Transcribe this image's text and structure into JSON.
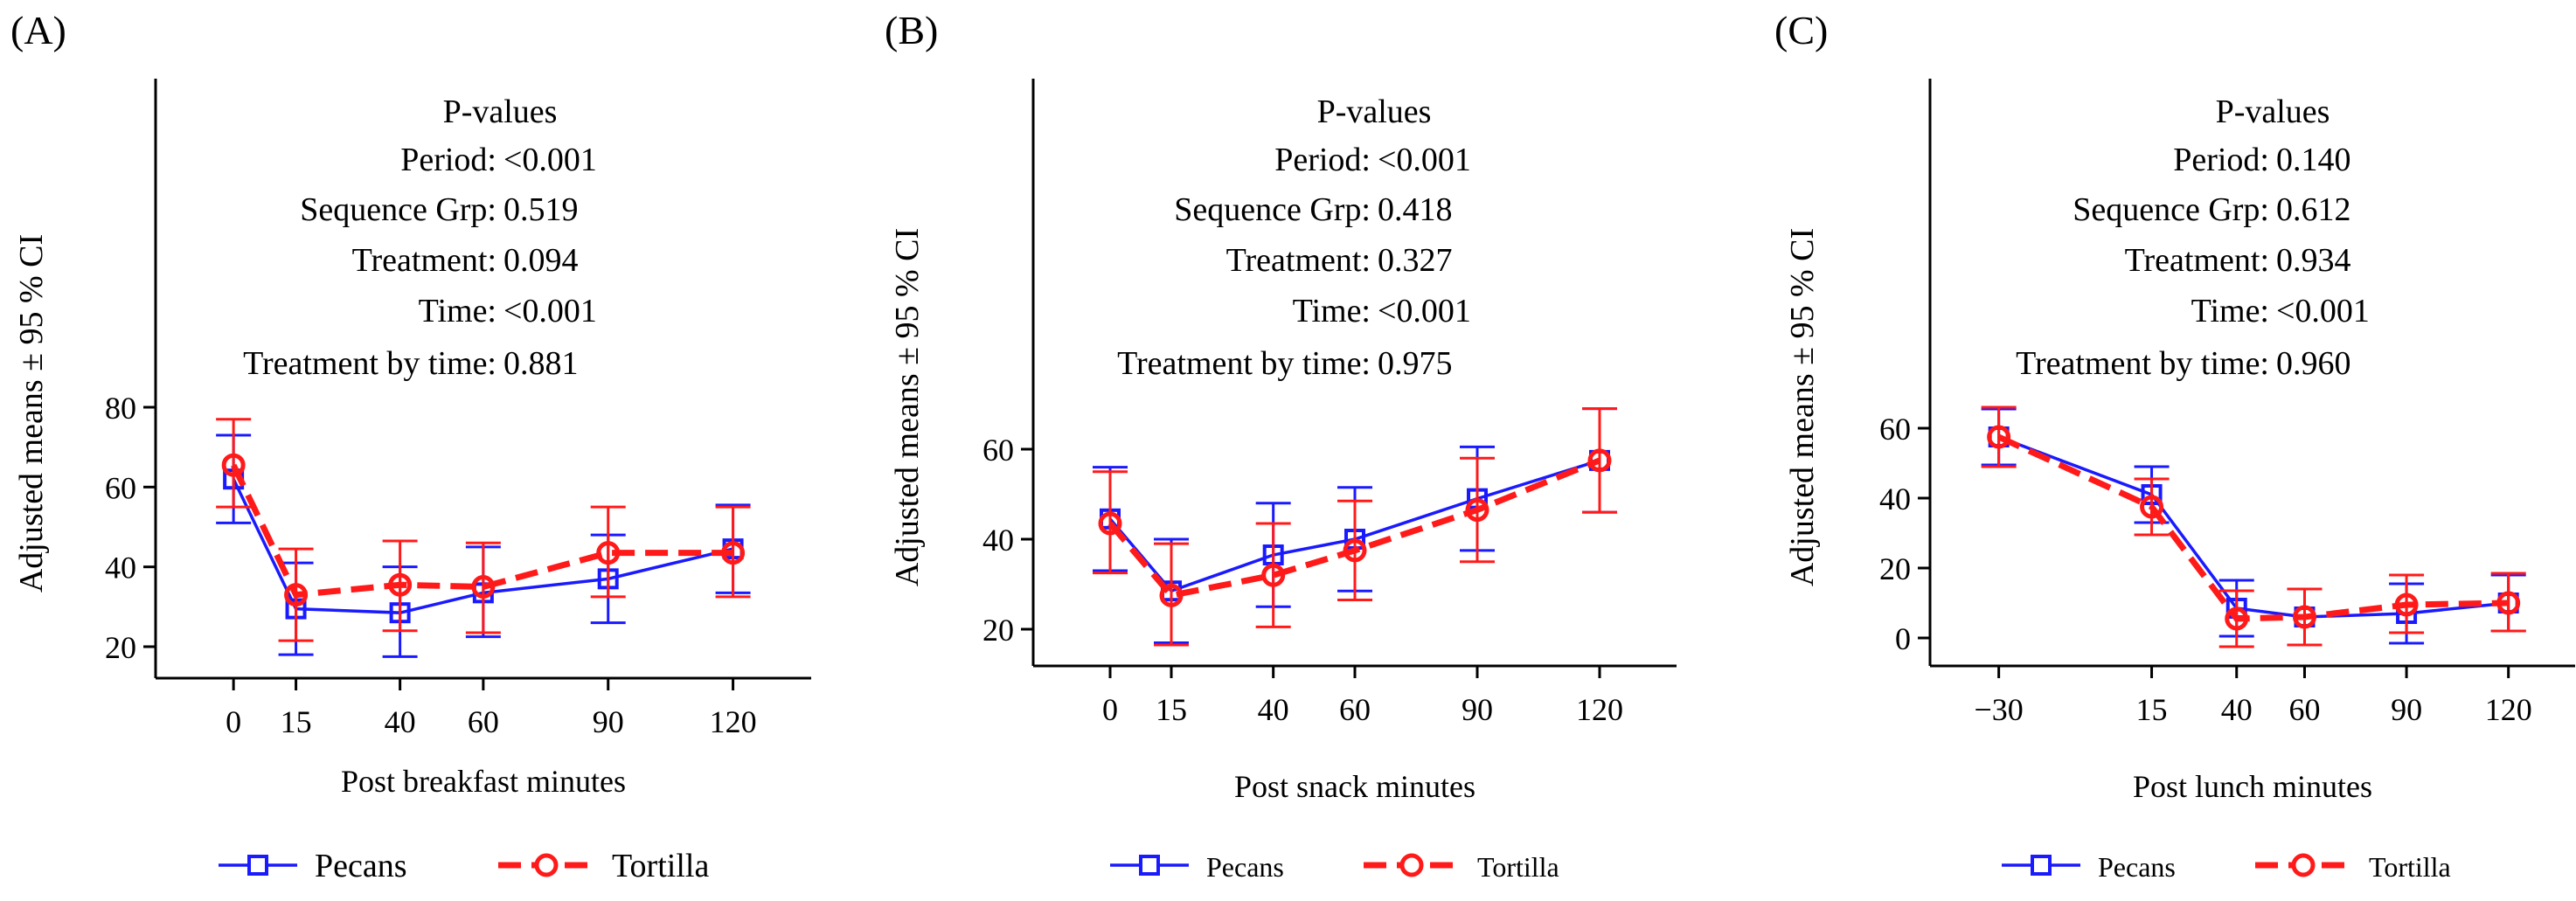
{
  "colors": {
    "pecans": "#1a1aff",
    "tortilla": "#ff1a1a",
    "axis": "#000000"
  },
  "chart_data": [
    {
      "type": "line",
      "panel_label": "(A)",
      "xlabel": "Post breakfast minutes",
      "ylabel": "Adjusted means ± 95 % CI",
      "x": [
        0,
        15,
        40,
        60,
        90,
        120
      ],
      "x_ticks": [
        "0",
        "15",
        "40",
        "60",
        "90",
        "120"
      ],
      "y_ticks": [
        20,
        40,
        60,
        80
      ],
      "ylim": [
        15,
        150
      ],
      "series": [
        {
          "name": "Pecans",
          "marker": "square",
          "line": "solid",
          "values": [
            62,
            29.5,
            28.5,
            33.5,
            37,
            44.5
          ],
          "lower": [
            51,
            18,
            17.5,
            22.5,
            26,
            33.5
          ],
          "upper": [
            73,
            41,
            40,
            45,
            48,
            55.5
          ]
        },
        {
          "name": "Tortilla",
          "marker": "circle",
          "line": "dashed",
          "values": [
            65.5,
            33,
            35.5,
            35,
            43.5,
            43.5
          ],
          "lower": [
            55,
            21.5,
            24,
            23.5,
            32.5,
            32.5
          ],
          "upper": [
            77,
            44.5,
            46.5,
            46,
            55,
            55
          ]
        }
      ],
      "pvalues": [
        {
          "label": "Period:",
          "value": "<0.001"
        },
        {
          "label": "Sequence Grp:",
          "value": "0.519"
        },
        {
          "label": "Treatment:",
          "value": "0.094"
        },
        {
          "label": "Time:",
          "value": "<0.001"
        },
        {
          "label": "Treatment by time:",
          "value": "0.881"
        }
      ],
      "pvalues_title": "P-values",
      "legend_position": "bottom"
    },
    {
      "type": "line",
      "panel_label": "(B)",
      "xlabel": "Post snack minutes",
      "ylabel": "Adjusted means ± 95 % CI",
      "x": [
        0,
        15,
        40,
        60,
        90,
        120
      ],
      "x_ticks": [
        "0",
        "15",
        "40",
        "60",
        "90",
        "120"
      ],
      "y_ticks": [
        20,
        40,
        60
      ],
      "ylim": [
        11,
        132
      ],
      "series": [
        {
          "name": "Pecans",
          "marker": "square",
          "line": "solid",
          "values": [
            44.5,
            28.5,
            36.5,
            40,
            49,
            57.5
          ],
          "lower": [
            33,
            17,
            25,
            28.5,
            37.5,
            46
          ],
          "upper": [
            56,
            40,
            48,
            51.5,
            60.5,
            69
          ]
        },
        {
          "name": "Tortilla",
          "marker": "circle",
          "line": "dashed",
          "values": [
            43.5,
            27.5,
            32,
            37.5,
            46.5,
            57.5
          ],
          "lower": [
            32.5,
            16.5,
            20.5,
            26.5,
            35,
            46
          ],
          "upper": [
            55,
            39,
            43.5,
            48.5,
            58,
            69
          ]
        }
      ],
      "pvalues": [
        {
          "label": "Period:",
          "value": "<0.001"
        },
        {
          "label": "Sequence Grp:",
          "value": "0.418"
        },
        {
          "label": "Treatment:",
          "value": "0.327"
        },
        {
          "label": "Time:",
          "value": "<0.001"
        },
        {
          "label": "Treatment by time:",
          "value": "0.975"
        }
      ],
      "pvalues_title": "P-values",
      "legend_position": "bottom"
    },
    {
      "type": "line",
      "panel_label": "(C)",
      "xlabel": "Post lunch minutes",
      "ylabel": "Adjusted means ± 95 % CI",
      "x": [
        -30,
        15,
        40,
        60,
        90,
        120
      ],
      "x_ticks": [
        "−30",
        "15",
        "40",
        "60",
        "90",
        "120"
      ],
      "y_ticks": [
        0,
        20,
        40,
        60
      ],
      "ylim": [
        -10,
        155
      ],
      "series": [
        {
          "name": "Pecans",
          "marker": "square",
          "line": "solid",
          "values": [
            57.5,
            41,
            8.5,
            6,
            7,
            10
          ],
          "lower": [
            49.5,
            33,
            0.5,
            -2,
            -1.5,
            2
          ],
          "upper": [
            65.5,
            49,
            16.5,
            14,
            15.5,
            18
          ]
        },
        {
          "name": "Tortilla",
          "marker": "circle",
          "line": "dashed",
          "values": [
            57.5,
            37.5,
            5.5,
            6,
            9.5,
            10
          ],
          "lower": [
            49,
            29.5,
            -2.5,
            -2,
            1.5,
            2
          ],
          "upper": [
            66,
            45.5,
            13.5,
            14,
            18,
            18.5
          ]
        }
      ],
      "pvalues": [
        {
          "label": "Period:",
          "value": "0.140"
        },
        {
          "label": "Sequence Grp:",
          "value": "0.612"
        },
        {
          "label": "Treatment:",
          "value": "0.934"
        },
        {
          "label": "Time:",
          "value": "<0.001"
        },
        {
          "label": "Treatment by time:",
          "value": "0.960"
        }
      ],
      "pvalues_title": "P-values",
      "legend_position": "bottom"
    }
  ]
}
